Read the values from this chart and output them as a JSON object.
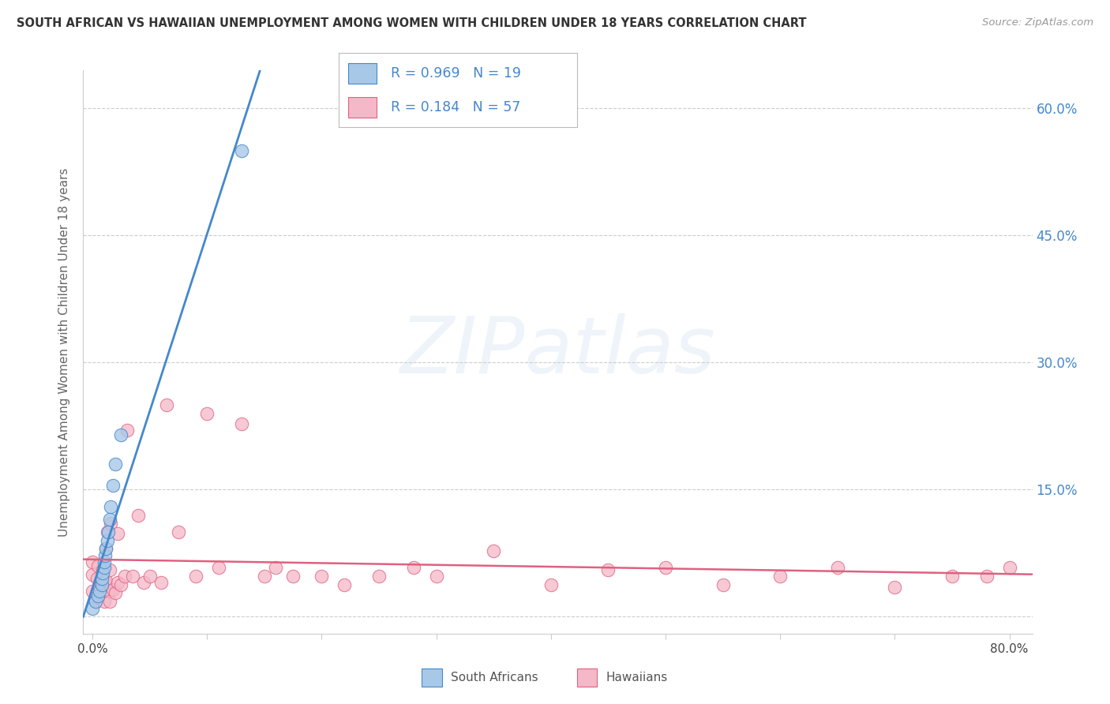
{
  "title": "SOUTH AFRICAN VS HAWAIIAN UNEMPLOYMENT AMONG WOMEN WITH CHILDREN UNDER 18 YEARS CORRELATION CHART",
  "source": "Source: ZipAtlas.com",
  "ylabel": "Unemployment Among Women with Children Under 18 years",
  "xlim": [
    -0.008,
    0.82
  ],
  "ylim": [
    -0.02,
    0.645
  ],
  "xtick_pos": [
    0.0,
    0.1,
    0.2,
    0.3,
    0.4,
    0.5,
    0.6,
    0.7,
    0.8
  ],
  "xticklabels": [
    "0.0%",
    "",
    "",
    "",
    "",
    "",
    "",
    "",
    "80.0%"
  ],
  "ytick_pos": [
    0.0,
    0.15,
    0.3,
    0.45,
    0.6
  ],
  "yticklabels_right": [
    "",
    "15.0%",
    "30.0%",
    "45.0%",
    "60.0%"
  ],
  "legend_r_sa": "0.969",
  "legend_n_sa": "19",
  "legend_r_ha": "0.184",
  "legend_n_ha": "57",
  "sa_fill": "#a8c8e8",
  "sa_edge": "#4488cc",
  "ha_fill": "#f5b8c8",
  "ha_edge": "#e06080",
  "sa_line": "#4488cc",
  "ha_line": "#e06080",
  "right_tick_color": "#4488cc",
  "bg": "#ffffff",
  "grid_color": "#cccccc",
  "sa_x": [
    0.0,
    0.003,
    0.005,
    0.006,
    0.008,
    0.008,
    0.009,
    0.01,
    0.01,
    0.011,
    0.012,
    0.013,
    0.014,
    0.015,
    0.016,
    0.018,
    0.02,
    0.025,
    0.13
  ],
  "sa_y": [
    0.01,
    0.018,
    0.025,
    0.03,
    0.038,
    0.045,
    0.052,
    0.058,
    0.065,
    0.072,
    0.08,
    0.09,
    0.1,
    0.115,
    0.13,
    0.155,
    0.18,
    0.215,
    0.55
  ],
  "ha_x": [
    0.0,
    0.0,
    0.0,
    0.003,
    0.004,
    0.005,
    0.006,
    0.007,
    0.008,
    0.009,
    0.01,
    0.01,
    0.011,
    0.012,
    0.012,
    0.013,
    0.014,
    0.015,
    0.015,
    0.016,
    0.018,
    0.02,
    0.022,
    0.022,
    0.025,
    0.028,
    0.03,
    0.035,
    0.04,
    0.045,
    0.05,
    0.06,
    0.065,
    0.075,
    0.09,
    0.1,
    0.11,
    0.13,
    0.15,
    0.16,
    0.175,
    0.2,
    0.22,
    0.25,
    0.28,
    0.3,
    0.35,
    0.4,
    0.45,
    0.5,
    0.55,
    0.6,
    0.65,
    0.7,
    0.75,
    0.78,
    0.8
  ],
  "ha_y": [
    0.03,
    0.05,
    0.065,
    0.018,
    0.045,
    0.06,
    0.035,
    0.04,
    0.04,
    0.055,
    0.018,
    0.038,
    0.04,
    0.042,
    0.08,
    0.1,
    0.03,
    0.018,
    0.055,
    0.11,
    0.032,
    0.028,
    0.04,
    0.098,
    0.038,
    0.048,
    0.22,
    0.048,
    0.12,
    0.04,
    0.048,
    0.04,
    0.25,
    0.1,
    0.048,
    0.24,
    0.058,
    0.228,
    0.048,
    0.058,
    0.048,
    0.048,
    0.038,
    0.048,
    0.058,
    0.048,
    0.078,
    0.038,
    0.055,
    0.058,
    0.038,
    0.048,
    0.058,
    0.035,
    0.048,
    0.048,
    0.058
  ]
}
